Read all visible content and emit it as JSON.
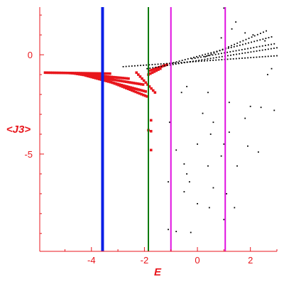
{
  "chart_data": {
    "type": "scatter",
    "title": "",
    "xlabel": "E",
    "ylabel": "<J3>",
    "xlim": [
      -5.95,
      3.0
    ],
    "ylim": [
      -9.9,
      2.4
    ],
    "grid": false,
    "legend": "none",
    "axis_color": "#e8161c",
    "x_ticks": [
      {
        "value": -4,
        "label": "-4"
      },
      {
        "value": -2,
        "label": "-2"
      },
      {
        "value": 0,
        "label": "0"
      },
      {
        "value": 2,
        "label": "2"
      }
    ],
    "y_ticks": [
      {
        "value": 0,
        "label": "0"
      },
      {
        "value": -5,
        "label": "-5"
      }
    ],
    "vertical_lines": [
      {
        "x": -3.58,
        "color": "#0a1ee6"
      },
      {
        "x": -1.85,
        "color": "#0a7a0a"
      },
      {
        "x": -1.0,
        "color": "#e010e0"
      },
      {
        "x": 1.05,
        "color": "#e010e0"
      }
    ],
    "series": [
      {
        "color": "#e8161c",
        "marker": "square",
        "branches": [
          {
            "x_start": -5.75,
            "x_end": -3.3,
            "y_start": -0.9,
            "y_end": -0.95
          },
          {
            "x_start": -4.8,
            "x_end": -2.6,
            "y_start": -0.92,
            "y_end": -1.2
          },
          {
            "x_start": -4.6,
            "x_end": -2.05,
            "y_start": -0.95,
            "y_end": -1.5
          },
          {
            "x_start": -4.2,
            "x_end": -1.95,
            "y_start": -1.05,
            "y_end": -1.85
          },
          {
            "x_start": -3.4,
            "x_end": -1.9,
            "y_start": -1.3,
            "y_end": -2.1
          },
          {
            "x_start": -1.8,
            "x_end": -1.15,
            "y_start": -0.8,
            "y_end": -0.5
          },
          {
            "x_start": -1.85,
            "x_end": -1.4,
            "y_start": -1.0,
            "y_end": -0.7
          },
          {
            "x_start": -2.3,
            "x_end": -1.6,
            "y_start": -0.9,
            "y_end": -1.9
          }
        ],
        "points": [
          {
            "x": -1.75,
            "y": -3.3
          },
          {
            "x": -1.85,
            "y": -3.8
          },
          {
            "x": -1.75,
            "y": -3.85
          },
          {
            "x": -1.75,
            "y": -4.8
          }
        ]
      },
      {
        "color": "#000000",
        "marker": "dot",
        "branches": [
          {
            "x_start": -2.8,
            "x_end": 3.0,
            "y_start": -0.6,
            "y_end": -0.05
          },
          {
            "x_start": -1.9,
            "x_end": 3.0,
            "y_start": -0.7,
            "y_end": 0.35
          },
          {
            "x_start": -0.9,
            "x_end": 2.8,
            "y_start": -0.4,
            "y_end": 0.9
          },
          {
            "x_start": -0.2,
            "x_end": 2.9,
            "y_start": -0.2,
            "y_end": 0.55
          },
          {
            "x_start": 0.3,
            "x_end": 2.6,
            "y_start": -0.1,
            "y_end": 1.2
          }
        ],
        "points": [
          {
            "x": 1.0,
            "y": 2.35
          },
          {
            "x": 1.45,
            "y": 1.65
          },
          {
            "x": 1.3,
            "y": 1.3
          },
          {
            "x": 1.8,
            "y": 1.1
          },
          {
            "x": 2.1,
            "y": 1.0
          },
          {
            "x": 0.9,
            "y": 0.85
          },
          {
            "x": 2.55,
            "y": 0.7
          },
          {
            "x": 2.8,
            "y": -0.7
          },
          {
            "x": 2.65,
            "y": -1.0
          },
          {
            "x": -0.6,
            "y": -1.9
          },
          {
            "x": -0.4,
            "y": -1.6
          },
          {
            "x": 0.4,
            "y": -1.9
          },
          {
            "x": 1.2,
            "y": -2.4
          },
          {
            "x": 2.0,
            "y": -2.6
          },
          {
            "x": 2.4,
            "y": -2.65
          },
          {
            "x": 2.9,
            "y": -2.8
          },
          {
            "x": 0.2,
            "y": -2.95
          },
          {
            "x": 0.6,
            "y": -3.4
          },
          {
            "x": 1.8,
            "y": -3.2
          },
          {
            "x": -1.05,
            "y": -3.4
          },
          {
            "x": 0.5,
            "y": -4.0
          },
          {
            "x": 1.2,
            "y": -3.9
          },
          {
            "x": 0.0,
            "y": -4.5
          },
          {
            "x": 1.0,
            "y": -4.5
          },
          {
            "x": 1.9,
            "y": -4.6
          },
          {
            "x": 2.3,
            "y": -4.9
          },
          {
            "x": -0.8,
            "y": -4.8
          },
          {
            "x": 0.9,
            "y": -5.1
          },
          {
            "x": -0.5,
            "y": -5.5
          },
          {
            "x": 0.4,
            "y": -5.6
          },
          {
            "x": 1.5,
            "y": -5.6
          },
          {
            "x": -0.4,
            "y": -6.0
          },
          {
            "x": -1.1,
            "y": -6.4
          },
          {
            "x": -0.3,
            "y": -6.4
          },
          {
            "x": 0.6,
            "y": -6.7
          },
          {
            "x": -0.5,
            "y": -6.9
          },
          {
            "x": 1.1,
            "y": -7.0
          },
          {
            "x": 0.0,
            "y": -7.5
          },
          {
            "x": 0.45,
            "y": -7.7
          },
          {
            "x": 1.4,
            "y": -7.7
          },
          {
            "x": -1.1,
            "y": -8.8
          },
          {
            "x": -0.8,
            "y": -8.9
          },
          {
            "x": -0.25,
            "y": -8.95
          },
          {
            "x": 1.0,
            "y": -8.3
          }
        ]
      }
    ]
  }
}
